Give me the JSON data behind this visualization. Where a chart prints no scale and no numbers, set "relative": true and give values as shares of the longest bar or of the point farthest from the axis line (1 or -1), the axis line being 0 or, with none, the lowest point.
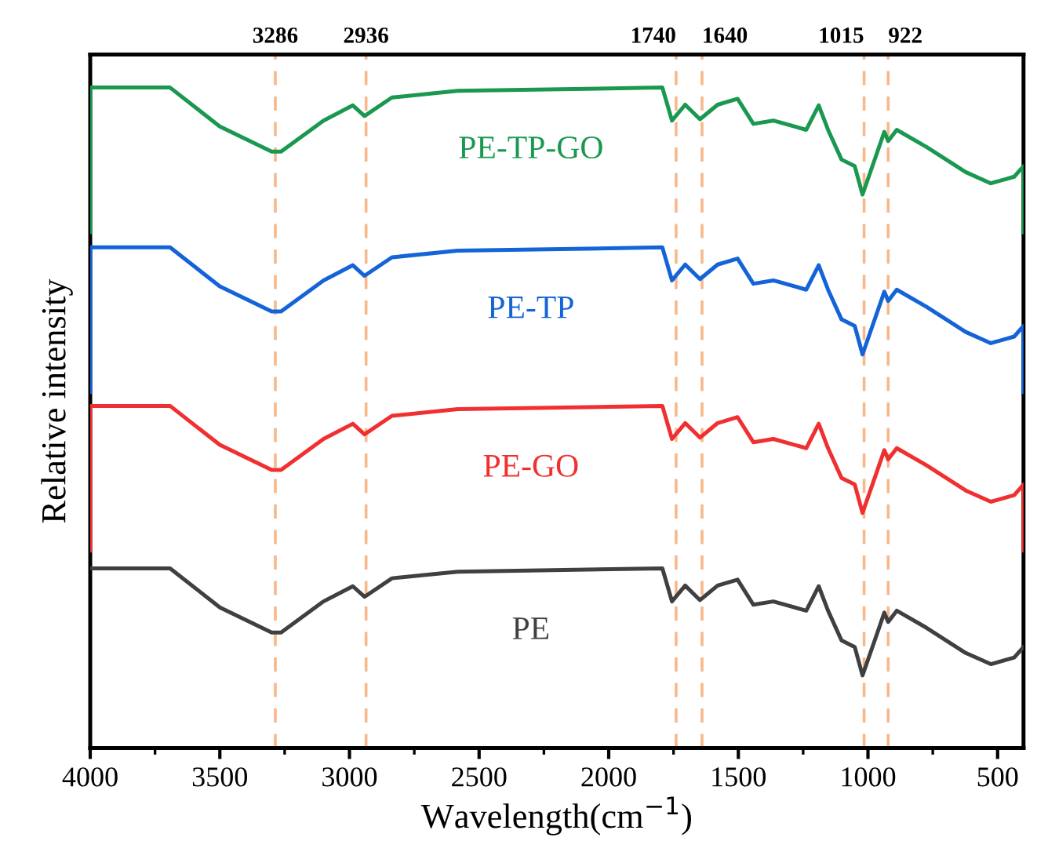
{
  "chart_data": {
    "type": "line",
    "relative": true,
    "xlabel": "Wavelength(cm$^{−1}$)",
    "ylabel": "Relative intensity",
    "xlim": [
      4000,
      400
    ],
    "xticks": [
      4000,
      3500,
      3000,
      2500,
      2000,
      1500,
      1000,
      500
    ],
    "grid": false,
    "legend": false,
    "line_style": "solid",
    "marker": "none",
    "x": [
      4000,
      4000,
      3692,
      3500,
      3300,
      3264,
      3100,
      2987,
      2942,
      2836,
      2583,
      1793,
      1756,
      1705,
      1648,
      1580,
      1503,
      1442,
      1365,
      1238,
      1190,
      1154,
      1102,
      1051,
      1021,
      966,
      937,
      922,
      889,
      774,
      623,
      526,
      436,
      400,
      400
    ],
    "series": [
      {
        "name": "PE-TP-GO",
        "color": "#1a9850",
        "values": [
          0.781,
          1.0,
          1.0,
          0.941,
          0.903,
          0.903,
          0.95,
          0.973,
          0.957,
          0.985,
          0.995,
          1.0,
          0.95,
          0.974,
          0.952,
          0.974,
          0.983,
          0.945,
          0.95,
          0.936,
          0.973,
          0.936,
          0.891,
          0.881,
          0.838,
          0.9,
          0.933,
          0.919,
          0.936,
          0.91,
          0.872,
          0.855,
          0.865,
          0.881,
          0.781
        ]
      },
      {
        "name": "PE-TP",
        "color": "#1464d8",
        "values": [
          0.539,
          0.758,
          0.758,
          0.699,
          0.661,
          0.661,
          0.708,
          0.731,
          0.715,
          0.743,
          0.753,
          0.758,
          0.708,
          0.732,
          0.71,
          0.732,
          0.741,
          0.703,
          0.708,
          0.694,
          0.731,
          0.694,
          0.649,
          0.639,
          0.596,
          0.658,
          0.691,
          0.677,
          0.694,
          0.668,
          0.63,
          0.613,
          0.623,
          0.639,
          0.539
        ]
      },
      {
        "name": "PE-GO",
        "color": "#f03030",
        "values": [
          0.299,
          0.518,
          0.518,
          0.459,
          0.421,
          0.421,
          0.468,
          0.491,
          0.475,
          0.503,
          0.513,
          0.518,
          0.468,
          0.492,
          0.47,
          0.492,
          0.501,
          0.463,
          0.468,
          0.454,
          0.491,
          0.454,
          0.409,
          0.399,
          0.356,
          0.418,
          0.451,
          0.437,
          0.454,
          0.428,
          0.39,
          0.373,
          0.383,
          0.399,
          0.299
        ]
      },
      {
        "name": "PE",
        "color": "#404040",
        "x": [
          4000,
          3692,
          3500,
          3300,
          3264,
          3100,
          2987,
          2942,
          2836,
          2583,
          1793,
          1756,
          1705,
          1648,
          1580,
          1503,
          1442,
          1365,
          1238,
          1190,
          1154,
          1102,
          1051,
          1021,
          966,
          937,
          922,
          889,
          774,
          623,
          526,
          436,
          400
        ],
        "values": [
          0.272,
          0.272,
          0.213,
          0.175,
          0.175,
          0.222,
          0.245,
          0.229,
          0.257,
          0.267,
          0.272,
          0.222,
          0.246,
          0.224,
          0.246,
          0.255,
          0.217,
          0.222,
          0.208,
          0.245,
          0.208,
          0.163,
          0.153,
          0.11,
          0.172,
          0.205,
          0.191,
          0.208,
          0.182,
          0.144,
          0.127,
          0.137,
          0.153
        ]
      }
    ],
    "ref_lines": [
      {
        "axis": "x",
        "value": 3286,
        "label": "3286",
        "color": "#f8b88b",
        "line_style": "dashed"
      },
      {
        "axis": "x",
        "value": 2936,
        "label": "2936",
        "color": "#f8b88b",
        "line_style": "dashed"
      },
      {
        "axis": "x",
        "value": 1740,
        "label": "1740",
        "color": "#f8b88b",
        "line_style": "dashed"
      },
      {
        "axis": "x",
        "value": 1640,
        "label": "1640",
        "color": "#f8b88b",
        "line_style": "dashed"
      },
      {
        "axis": "x",
        "value": 1015,
        "label": "1015",
        "color": "#f8b88b",
        "line_style": "dashed"
      },
      {
        "axis": "x",
        "value": 922,
        "label": "922",
        "color": "#f8b88b",
        "line_style": "dashed"
      }
    ]
  }
}
